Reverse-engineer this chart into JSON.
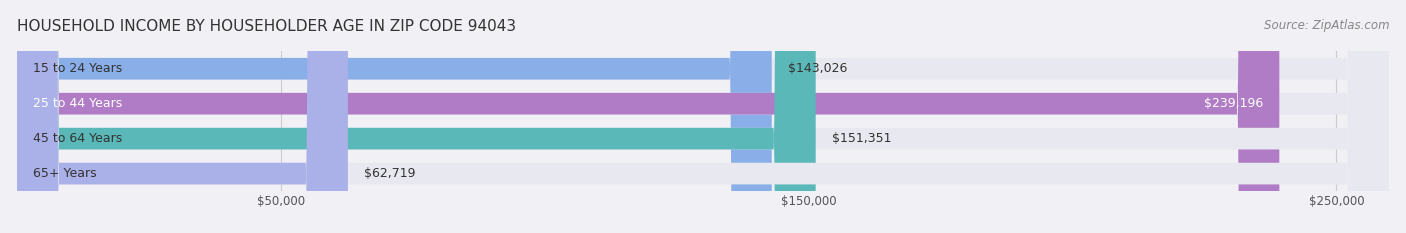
{
  "title": "HOUSEHOLD INCOME BY HOUSEHOLDER AGE IN ZIP CODE 94043",
  "source": "Source: ZipAtlas.com",
  "categories": [
    "15 to 24 Years",
    "25 to 44 Years",
    "45 to 64 Years",
    "65+ Years"
  ],
  "values": [
    143026,
    239196,
    151351,
    62719
  ],
  "bar_colors": [
    "#8aaee8",
    "#b07cc6",
    "#5bb8b8",
    "#aab0e8"
  ],
  "background_color": "#f0f0f5",
  "bar_bg_color": "#e8e8f0",
  "xmax": 260000,
  "xticks": [
    50000,
    150000,
    250000
  ],
  "xtick_labels": [
    "$50,000",
    "$150,000",
    "$250,000"
  ],
  "value_labels": [
    "$143,026",
    "$239,196",
    "$151,351",
    "$62,719"
  ],
  "label_inside": [
    false,
    true,
    false,
    false
  ],
  "title_fontsize": 11,
  "source_fontsize": 8.5,
  "bar_label_fontsize": 9,
  "category_fontsize": 9,
  "xtick_fontsize": 8.5
}
